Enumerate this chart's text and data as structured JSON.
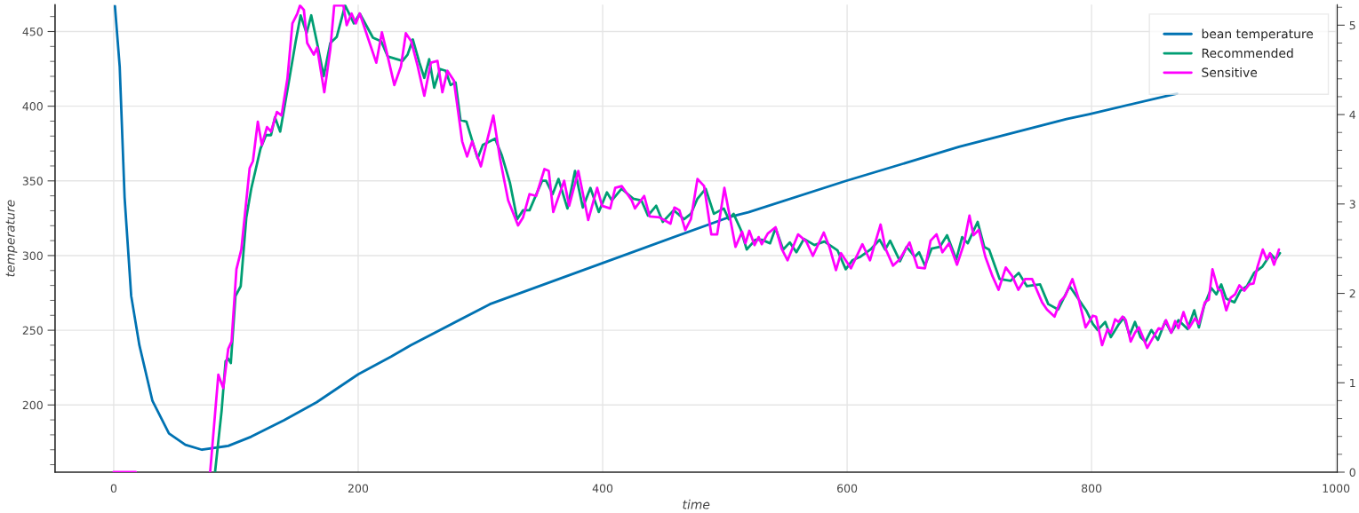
{
  "chart_data": {
    "type": "line",
    "xlabel": "time",
    "ylabel": "temperature",
    "xlim": [
      -48,
      1001
    ],
    "xticks": [
      0,
      200,
      400,
      600,
      800,
      1000
    ],
    "ylim": [
      155,
      468
    ],
    "yticks": [
      200,
      250,
      300,
      350,
      400,
      450
    ],
    "y2lim": [
      0,
      5.23
    ],
    "y2ticks": [
      0,
      1,
      2,
      3,
      4,
      5
    ],
    "grid": true,
    "legend": "top right",
    "marker": "none",
    "line_style": "solid",
    "series": [
      {
        "name": "bean temperature",
        "color": "#0072b2",
        "x": [
          1,
          4.9,
          8.9,
          14.3,
          21,
          31.7,
          45.2,
          58.6,
          72.2,
          93.7,
          112.4,
          139.3,
          166,
          200,
          227,
          243,
          307.8,
          400,
          503.3,
          519.3,
          599.2,
          691.6,
          779.5,
          798.3,
          870
        ],
        "values": [
          467,
          426.5,
          339,
          273,
          240,
          202.7,
          180.9,
          173.3,
          170,
          172.6,
          178.7,
          189.8,
          201.8,
          220.5,
          232.4,
          240,
          267.5,
          295,
          325.7,
          329,
          350,
          372.8,
          391.4,
          394.7,
          408.5
        ]
      },
      {
        "name": "Recommended",
        "color": "#009e73",
        "axis": "y2",
        "x": [
          82.9,
          88.3,
          91.5,
          93.7,
          95.8,
          99.6,
          103.9,
          108.5,
          112.5,
          120.1,
          124.6,
          128.7,
          131.9,
          136.2,
          142.7,
          148.9,
          152.9,
          157.8,
          161.6,
          166.4,
          171.8,
          177.2,
          182.5,
          189.3,
          196.5,
          201.3,
          212.1,
          218.8,
          224.2,
          236.3,
          240.4,
          244.7,
          250.1,
          254.1,
          258.1,
          262.2,
          267,
          271.6,
          275.6,
          279.7,
          283.7,
          288.6,
          297.7,
          302,
          312,
          317.4,
          324.1,
          330.1,
          334.9,
          340.2,
          350.5,
          353.7,
          359.1,
          363.9,
          371.2,
          377.4,
          383.8,
          390,
          396.8,
          403.5,
          407.5,
          415.5,
          425,
          431.7,
          437.1,
          443.8,
          449.2,
          458.1,
          466.7,
          472.2,
          477.6,
          484.3,
          491,
          499.1,
          503.1,
          507.1,
          513.1,
          517.9,
          524.9,
          530.2,
          537,
          541.5,
          547.7,
          553.1,
          558.5,
          564.7,
          573.3,
          581.4,
          592.2,
          598.9,
          604.3,
          611,
          619.1,
          626.6,
          631.2,
          635.2,
          643.3,
          648.7,
          655.4,
          658.9,
          663.7,
          669.1,
          675.8,
          681.8,
          689.3,
          694.1,
          698.7,
          706.8,
          712.2,
          716.2,
          724.8,
          733.7,
          740.4,
          747.1,
          757.9,
          764.6,
          772.7,
          782.1,
          795.6,
          801,
          805,
          811.2,
          815.8,
          822.5,
          826.6,
          831.1,
          835.5,
          840,
          844.1,
          848.9,
          854.3,
          860.3,
          865.2,
          871.1,
          878.6,
          884,
          887.8,
          892.1,
          898,
          902.1,
          906.1,
          910.2,
          916.9,
          921.7,
          927.1,
          933,
          939.8,
          946.5,
          950.6,
          954.1
        ],
        "values": [
          0,
          0.69,
          1.24,
          1.27,
          1.22,
          1.97,
          2.08,
          2.85,
          3.17,
          3.62,
          3.77,
          3.77,
          3.97,
          3.81,
          4.32,
          4.82,
          5.11,
          4.91,
          5.11,
          4.8,
          4.43,
          4.8,
          4.87,
          5.22,
          5.02,
          5.13,
          4.86,
          4.82,
          4.65,
          4.6,
          4.67,
          4.84,
          4.58,
          4.41,
          4.62,
          4.3,
          4.51,
          4.49,
          4.33,
          4.36,
          3.94,
          3.92,
          3.51,
          3.66,
          3.73,
          3.55,
          3.24,
          2.83,
          2.93,
          2.93,
          3.26,
          3.26,
          3.11,
          3.28,
          2.95,
          3.37,
          2.96,
          3.18,
          2.91,
          3.13,
          3.04,
          3.17,
          3.06,
          3.04,
          2.87,
          2.98,
          2.8,
          2.93,
          2.83,
          2.89,
          3.06,
          3.17,
          2.89,
          2.95,
          2.83,
          2.89,
          2.71,
          2.49,
          2.6,
          2.6,
          2.56,
          2.73,
          2.49,
          2.57,
          2.46,
          2.61,
          2.54,
          2.58,
          2.48,
          2.27,
          2.37,
          2.41,
          2.49,
          2.6,
          2.49,
          2.59,
          2.36,
          2.52,
          2.41,
          2.46,
          2.31,
          2.5,
          2.52,
          2.65,
          2.38,
          2.63,
          2.56,
          2.8,
          2.52,
          2.49,
          2.16,
          2.14,
          2.23,
          2.08,
          2.1,
          1.88,
          1.82,
          2.08,
          1.81,
          1.66,
          1.59,
          1.68,
          1.51,
          1.66,
          1.73,
          1.53,
          1.68,
          1.51,
          1.46,
          1.59,
          1.48,
          1.69,
          1.56,
          1.7,
          1.6,
          1.81,
          1.62,
          1.86,
          2.06,
          1.99,
          2.1,
          1.94,
          1.9,
          2.03,
          2.08,
          2.23,
          2.3,
          2.44,
          2.38,
          2.45
        ]
      },
      {
        "name": "Sensitive",
        "color": "#ff00ff",
        "axis": "y2",
        "x": [
          0,
          18,
          19,
          78.9,
          85.6,
          89.6,
          93.7,
          96.4,
          100.4,
          104.4,
          111.2,
          113.9,
          117.9,
          121.2,
          125.4,
          128.7,
          133.5,
          137.3,
          142.1,
          146.2,
          150.2,
          152.4,
          155.6,
          158.3,
          163.7,
          166.4,
          172.3,
          177.2,
          180.4,
          187.9,
          190.6,
          194.6,
          198.1,
          201.3,
          209.4,
          214.8,
          219.4,
          222.8,
          229.6,
          235,
          239,
          243.4,
          248.7,
          254.1,
          259.5,
          264.9,
          268.9,
          273,
          278.3,
          285.1,
          289.1,
          293.2,
          300.4,
          305.3,
          310.6,
          316,
          322.7,
          330.8,
          334.9,
          340.2,
          345.6,
          352.4,
          355.9,
          359.6,
          368.5,
          372.6,
          380.1,
          388.2,
          395.5,
          399.5,
          406.2,
          410.3,
          415.7,
          423.8,
          426.4,
          434,
          438.5,
          446.6,
          455.5,
          458.7,
          462.8,
          467.6,
          472.2,
          477.6,
          483,
          488.9,
          493.7,
          499.6,
          508.7,
          514.1,
          516.8,
          520,
          524.3,
          527.6,
          530.2,
          535.1,
          541.5,
          546.4,
          551.3,
          559.9,
          566.6,
          572,
          580.9,
          585.5,
          590.9,
          595,
          603.1,
          612.5,
          618.7,
          627.4,
          631.4,
          637.6,
          643,
          651.1,
          657.6,
          663.7,
          668.3,
          673.2,
          678,
          683.4,
          689.9,
          695.3,
          700.1,
          703.4,
          707.7,
          713.1,
          719,
          723.9,
          729.8,
          735.2,
          740.1,
          745.5,
          751.4,
          759.5,
          763.5,
          769.7,
          774.3,
          778.4,
          784.3,
          789.2,
          795.1,
          801,
          803.7,
          808.6,
          813.1,
          815.8,
          819.3,
          822,
          825.3,
          828,
          832,
          835.5,
          838.7,
          842,
          845.5,
          850.1,
          854.9,
          857.6,
          860.9,
          865.2,
          868.4,
          871.1,
          875.2,
          879.7,
          884.6,
          887.8,
          892.7,
          895.9,
          898.9,
          903.4,
          906.1,
          910.2,
          913.7,
          917.4,
          920.9,
          925,
          929,
          932.5,
          935.8,
          940.1,
          943.3,
          946,
          949.3,
          953.3
        ],
        "values": [
          0,
          0,
          null,
          0,
          1.09,
          0.94,
          1.38,
          1.46,
          2.27,
          2.49,
          3.4,
          3.48,
          3.92,
          3.66,
          3.86,
          3.81,
          4.03,
          3.99,
          4.4,
          5.02,
          5.13,
          5.22,
          5.17,
          4.8,
          4.67,
          4.75,
          4.25,
          4.73,
          5.22,
          5.22,
          5.0,
          5.13,
          5.02,
          5.13,
          4.8,
          4.58,
          4.92,
          4.73,
          4.33,
          4.54,
          4.91,
          4.82,
          4.54,
          4.21,
          4.58,
          4.6,
          4.25,
          4.49,
          4.38,
          3.7,
          3.53,
          3.7,
          3.42,
          3.7,
          3.99,
          3.51,
          3.04,
          2.76,
          2.85,
          3.11,
          3.09,
          3.39,
          3.37,
          2.91,
          3.26,
          2.98,
          3.37,
          2.82,
          3.18,
          2.98,
          2.95,
          3.18,
          3.2,
          3.04,
          2.95,
          3.09,
          2.86,
          2.85,
          2.78,
          2.96,
          2.93,
          2.71,
          2.83,
          3.28,
          3.2,
          2.66,
          2.66,
          3.18,
          2.52,
          2.69,
          2.56,
          2.7,
          2.54,
          2.63,
          2.55,
          2.67,
          2.74,
          2.5,
          2.37,
          2.66,
          2.58,
          2.42,
          2.68,
          2.52,
          2.26,
          2.45,
          2.28,
          2.55,
          2.37,
          2.77,
          2.5,
          2.31,
          2.38,
          2.57,
          2.29,
          2.28,
          2.59,
          2.66,
          2.46,
          2.56,
          2.32,
          2.54,
          2.87,
          2.65,
          2.71,
          2.41,
          2.19,
          2.04,
          2.29,
          2.19,
          2.04,
          2.16,
          2.16,
          1.9,
          1.82,
          1.74,
          1.91,
          1.97,
          2.16,
          1.95,
          1.62,
          1.75,
          1.74,
          1.42,
          1.6,
          1.56,
          1.71,
          1.68,
          1.74,
          1.7,
          1.46,
          1.56,
          1.62,
          1.51,
          1.39,
          1.5,
          1.61,
          1.6,
          1.7,
          1.56,
          1.69,
          1.61,
          1.79,
          1.61,
          1.72,
          1.66,
          1.9,
          1.93,
          2.27,
          2.05,
          2.03,
          1.81,
          1.95,
          1.99,
          2.09,
          2.03,
          2.1,
          2.11,
          2.3,
          2.49,
          2.38,
          2.45,
          2.32,
          2.49
        ]
      }
    ]
  }
}
